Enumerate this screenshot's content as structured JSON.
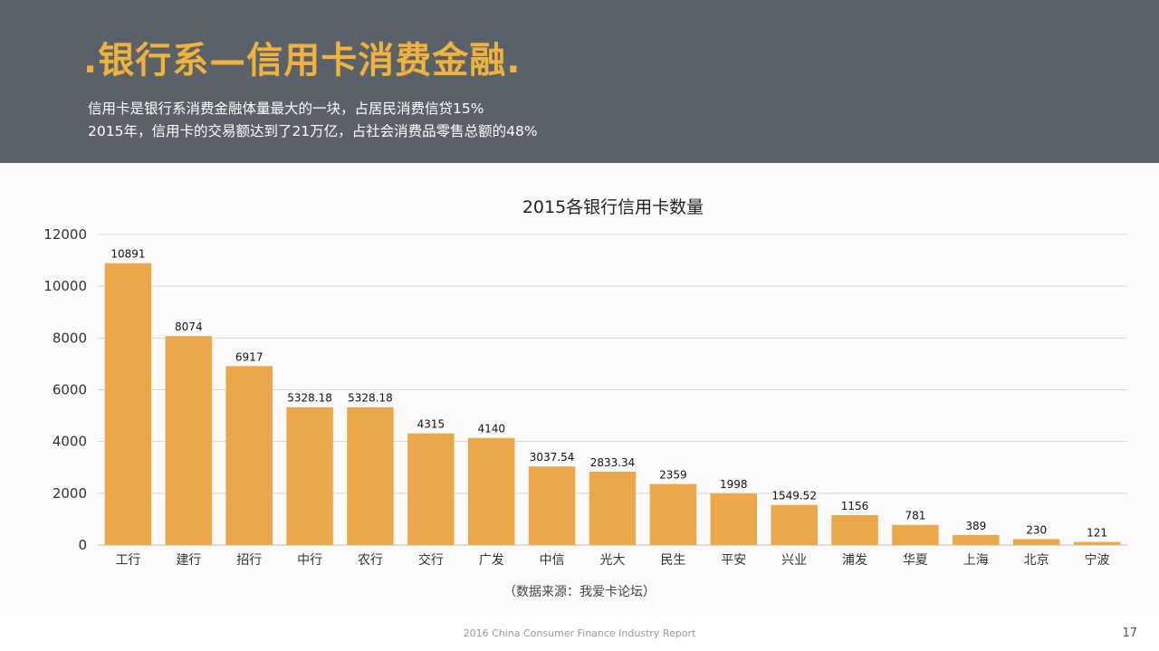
{
  "header": {
    "title": ".银行系—信用卡消费金融.",
    "line1": "信用卡是银行系消费金融体量最大的一块，占居民消费信贷15%",
    "line2": "2015年，信用卡的交易额达到了21万亿，占社会消费品零售总额的48%"
  },
  "chart_data": {
    "type": "bar",
    "title": "2015各银行信用卡数量",
    "xlabel": "",
    "ylabel": "",
    "ylim": [
      0,
      12000
    ],
    "yticks": [
      0,
      2000,
      4000,
      6000,
      8000,
      10000,
      12000
    ],
    "grid": true,
    "categories": [
      "工行",
      "建行",
      "招行",
      "中行",
      "农行",
      "交行",
      "广发",
      "中信",
      "光大",
      "民生",
      "平安",
      "兴业",
      "浦发",
      "华夏",
      "上海",
      "北京",
      "宁波"
    ],
    "values": [
      10891,
      8074,
      6917,
      5328.18,
      5328.18,
      4315,
      4140,
      3037.54,
      2833.34,
      2359,
      1998,
      1549.52,
      1156,
      781,
      389,
      230,
      121
    ],
    "value_labels": [
      "10891",
      "8074",
      "6917",
      "5328.18",
      "5328.18",
      "4315",
      "4140",
      "3037.54",
      "2833.34",
      "2359",
      "1998",
      "1549.52",
      "1156",
      "781",
      "389",
      "230",
      "121"
    ],
    "bar_color": "#eba84a"
  },
  "source": "（数据来源：我爱卡论坛）",
  "footer": "2016 China Consumer Finance Industry Report",
  "page_number": "17"
}
